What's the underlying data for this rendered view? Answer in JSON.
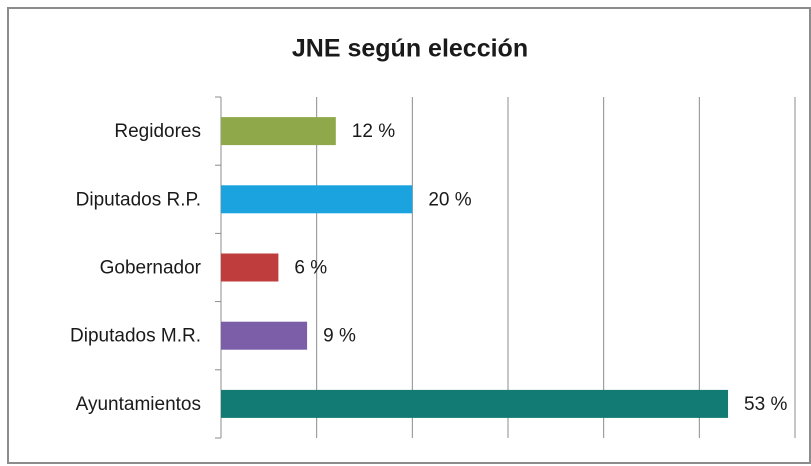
{
  "chart_data": {
    "type": "bar",
    "orientation": "horizontal",
    "title": "JNE según elección",
    "categories": [
      "Regidores",
      "Diputados R.P.",
      "Gobernador",
      "Diputados M.R.",
      "Ayuntamientos"
    ],
    "values": [
      12,
      20,
      6,
      9,
      53
    ],
    "value_labels": [
      "12 %",
      "20 %",
      "6 %",
      "9 %",
      "53 %"
    ],
    "colors": [
      "#8fa84a",
      "#1aa3de",
      "#bf3d3d",
      "#7b5ea7",
      "#127c74"
    ],
    "xlim": [
      0,
      60
    ],
    "xticks": [
      0,
      10,
      20,
      30,
      40,
      50,
      60
    ],
    "grid": true
  }
}
